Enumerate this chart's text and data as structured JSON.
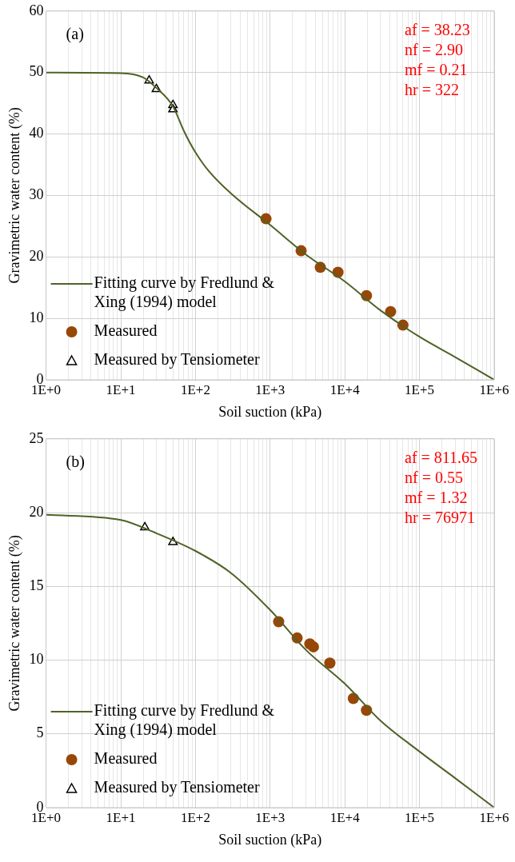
{
  "chart_data": [
    {
      "type": "scatter",
      "xlabel": "Soil suction (kPa)",
      "ylabel": "Gravimetric water content (%)",
      "log": "x",
      "xlim": [
        1,
        1000000
      ],
      "ylim": [
        0,
        60
      ],
      "yticks": [
        0,
        10,
        20,
        30,
        40,
        50,
        60
      ],
      "xticks": [
        {
          "value": 1,
          "label": "1E+0"
        },
        {
          "value": 2,
          "label": null
        },
        {
          "value": 3,
          "label": null
        },
        {
          "value": 4,
          "label": null
        },
        {
          "value": 5,
          "label": null
        },
        {
          "value": 6,
          "label": null
        },
        {
          "value": 7,
          "label": null
        },
        {
          "value": 8,
          "label": null
        },
        {
          "value": 9,
          "label": null
        },
        {
          "value": 10,
          "label": "1E+1"
        },
        {
          "value": 20,
          "label": null
        },
        {
          "value": 30,
          "label": null
        },
        {
          "value": 40,
          "label": null
        },
        {
          "value": 50,
          "label": null
        },
        {
          "value": 60,
          "label": null
        },
        {
          "value": 70,
          "label": null
        },
        {
          "value": 80,
          "label": null
        },
        {
          "value": 90,
          "label": null
        },
        {
          "value": 100,
          "label": "1E+2"
        },
        {
          "value": 200,
          "label": null
        },
        {
          "value": 300,
          "label": null
        },
        {
          "value": 400,
          "label": null
        },
        {
          "value": 500,
          "label": null
        },
        {
          "value": 600,
          "label": null
        },
        {
          "value": 700,
          "label": null
        },
        {
          "value": 800,
          "label": null
        },
        {
          "value": 900,
          "label": null
        },
        {
          "value": 1000,
          "label": "1E+3"
        },
        {
          "value": 2000,
          "label": null
        },
        {
          "value": 3000,
          "label": null
        },
        {
          "value": 4000,
          "label": null
        },
        {
          "value": 5000,
          "label": null
        },
        {
          "value": 6000,
          "label": null
        },
        {
          "value": 7000,
          "label": null
        },
        {
          "value": 8000,
          "label": null
        },
        {
          "value": 9000,
          "label": null
        },
        {
          "value": 10000,
          "label": "1E+4"
        },
        {
          "value": 20000,
          "label": null
        },
        {
          "value": 30000,
          "label": null
        },
        {
          "value": 40000,
          "label": null
        },
        {
          "value": 50000,
          "label": null
        },
        {
          "value": 60000,
          "label": null
        },
        {
          "value": 70000,
          "label": null
        },
        {
          "value": 80000,
          "label": null
        },
        {
          "value": 90000,
          "label": null
        },
        {
          "value": 100000,
          "label": "1E+5"
        },
        {
          "value": 200000,
          "label": null
        },
        {
          "value": 300000,
          "label": null
        },
        {
          "value": 400000,
          "label": null
        },
        {
          "value": 500000,
          "label": null
        },
        {
          "value": 600000,
          "label": null
        },
        {
          "value": 700000,
          "label": null
        },
        {
          "value": 800000,
          "label": null
        },
        {
          "value": 900000,
          "label": null
        },
        {
          "value": 1000000,
          "label": "1E+6"
        }
      ],
      "grid": true,
      "legend": "bottom left",
      "annotations": [
        "(a)",
        "af = 38.23",
        "nf = 2.90",
        "mf = 0.21",
        "hr = 322"
      ],
      "series": [
        {
          "name": "Fitting curve by Fredlund & Xing (1994) model",
          "type": "line",
          "marker": "none",
          "color": "#4f6228",
          "x": [
            1,
            10,
            20,
            30,
            50,
            70,
            100,
            150,
            300,
            1000,
            3000,
            10000,
            30000,
            100000,
            300000,
            1000000
          ],
          "values": [
            50,
            49.9,
            49.2,
            47.5,
            44.5,
            40.5,
            37,
            34,
            30.3,
            25.2,
            20.4,
            16,
            11.3,
            7,
            3.7,
            0
          ]
        },
        {
          "name": "Measured",
          "type": "scatter",
          "marker": "circle",
          "color": "#974706",
          "x": [
            880,
            2600,
            4700,
            8100,
            19500,
            41000,
            60000
          ],
          "values": [
            26.2,
            21.0,
            18.3,
            17.5,
            13.7,
            11.1,
            8.9
          ]
        },
        {
          "name": "Measured by Tensiometer",
          "type": "scatter",
          "marker": "triangle",
          "color": "#000000",
          "x": [
            24,
            30,
            50,
            50
          ],
          "values": [
            48.7,
            47.3,
            44.7,
            44.0
          ]
        }
      ]
    },
    {
      "type": "scatter",
      "xlabel": "Soil suction (kPa)",
      "ylabel": "Gravimetric water content (%)",
      "log": "x",
      "xlim": [
        1,
        1000000
      ],
      "ylim": [
        0,
        25
      ],
      "yticks": [
        0,
        5,
        10,
        15,
        20,
        25
      ],
      "xticks": [
        {
          "value": 1,
          "label": "1E+0"
        },
        {
          "value": 2,
          "label": null
        },
        {
          "value": 3,
          "label": null
        },
        {
          "value": 4,
          "label": null
        },
        {
          "value": 5,
          "label": null
        },
        {
          "value": 6,
          "label": null
        },
        {
          "value": 7,
          "label": null
        },
        {
          "value": 8,
          "label": null
        },
        {
          "value": 9,
          "label": null
        },
        {
          "value": 10,
          "label": "1E+1"
        },
        {
          "value": 20,
          "label": null
        },
        {
          "value": 30,
          "label": null
        },
        {
          "value": 40,
          "label": null
        },
        {
          "value": 50,
          "label": null
        },
        {
          "value": 60,
          "label": null
        },
        {
          "value": 70,
          "label": null
        },
        {
          "value": 80,
          "label": null
        },
        {
          "value": 90,
          "label": null
        },
        {
          "value": 100,
          "label": "1E+2"
        },
        {
          "value": 200,
          "label": null
        },
        {
          "value": 300,
          "label": null
        },
        {
          "value": 400,
          "label": null
        },
        {
          "value": 500,
          "label": null
        },
        {
          "value": 600,
          "label": null
        },
        {
          "value": 700,
          "label": null
        },
        {
          "value": 800,
          "label": null
        },
        {
          "value": 900,
          "label": null
        },
        {
          "value": 1000,
          "label": "1E+3"
        },
        {
          "value": 2000,
          "label": null
        },
        {
          "value": 3000,
          "label": null
        },
        {
          "value": 4000,
          "label": null
        },
        {
          "value": 5000,
          "label": null
        },
        {
          "value": 6000,
          "label": null
        },
        {
          "value": 7000,
          "label": null
        },
        {
          "value": 8000,
          "label": null
        },
        {
          "value": 9000,
          "label": null
        },
        {
          "value": 10000,
          "label": "1E+4"
        },
        {
          "value": 20000,
          "label": null
        },
        {
          "value": 30000,
          "label": null
        },
        {
          "value": 40000,
          "label": null
        },
        {
          "value": 50000,
          "label": null
        },
        {
          "value": 60000,
          "label": null
        },
        {
          "value": 70000,
          "label": null
        },
        {
          "value": 80000,
          "label": null
        },
        {
          "value": 90000,
          "label": null
        },
        {
          "value": 100000,
          "label": "1E+5"
        },
        {
          "value": 200000,
          "label": null
        },
        {
          "value": 300000,
          "label": null
        },
        {
          "value": 400000,
          "label": null
        },
        {
          "value": 500000,
          "label": null
        },
        {
          "value": 600000,
          "label": null
        },
        {
          "value": 700000,
          "label": null
        },
        {
          "value": 800000,
          "label": null
        },
        {
          "value": 900000,
          "label": null
        },
        {
          "value": 1000000,
          "label": "1E+6"
        }
      ],
      "grid": true,
      "legend": "bottom left",
      "annotations": [
        "(b)",
        "af = 811.65",
        "nf = 0.55",
        "mf = 1.32",
        "hr = 76971"
      ],
      "series": [
        {
          "name": "Fitting curve by Fredlund & Xing (1994) model",
          "type": "line",
          "marker": "none",
          "color": "#4f6228",
          "x": [
            1,
            10,
            30,
            100,
            300,
            1000,
            3000,
            10000,
            30000,
            100000,
            300000,
            1000000
          ],
          "values": [
            19.85,
            19.5,
            18.6,
            17.4,
            15.9,
            13.4,
            10.7,
            8.4,
            5.9,
            3.8,
            2.0,
            0
          ]
        },
        {
          "name": "Measured",
          "type": "scatter",
          "marker": "circle",
          "color": "#974706",
          "x": [
            1300,
            2300,
            3400,
            3800,
            6300,
            13000,
            19500
          ],
          "values": [
            12.6,
            11.5,
            11.1,
            10.9,
            9.8,
            7.4,
            6.6
          ]
        },
        {
          "name": "Measured by Tensiometer",
          "type": "scatter",
          "marker": "triangle",
          "color": "#000000",
          "x": [
            21,
            50
          ],
          "values": [
            19.0,
            18.0
          ]
        }
      ]
    }
  ]
}
